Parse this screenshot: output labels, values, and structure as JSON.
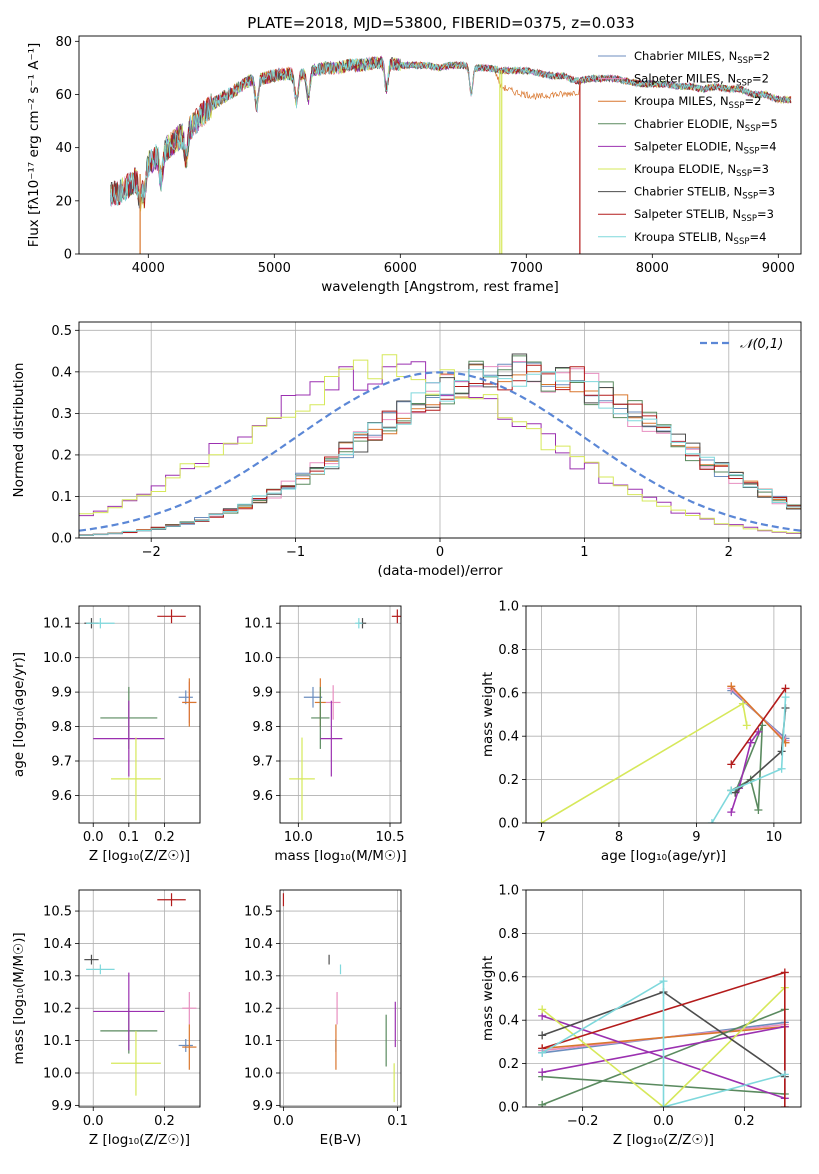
{
  "title": "PLATE=2018, MJD=53800, FIBERID=0375, z=0.033",
  "palette": {
    "Chabrier MILES": "#6c8ebf",
    "Salpeter MILES": "#e88fc0",
    "Kroupa MILES": "#d9772e",
    "Chabrier ELODIE": "#5a8a5f",
    "Salpeter ELODIE": "#9b30b0",
    "Kroupa ELODIE": "#d6e85a",
    "Chabrier STELIB": "#4d4d4d",
    "Salpeter STELIB": "#b31b1b",
    "Kroupa STELIB": "#7fd8dc",
    "normal": "#5b87d6"
  },
  "chart_data": [
    {
      "id": "spectrum",
      "type": "line",
      "xlabel": "wavelength [Angstrom, rest frame]",
      "ylabel": "Flux [fλ10⁻¹⁷ erg cm⁻² s⁻¹ A⁻¹]",
      "xlim": [
        3450,
        9180
      ],
      "ylim": [
        0,
        82
      ],
      "xticks": [
        4000,
        5000,
        6000,
        7000,
        8000,
        9000
      ],
      "yticks": [
        0,
        20,
        40,
        60,
        80
      ],
      "legend_position": "upper-right",
      "legend": [
        {
          "text": "Chabrier MILES, NSSP=2"
        },
        {
          "text": "Salpeter MILES, NSSP=2"
        },
        {
          "text": "Kroupa MILES, NSSP=2"
        },
        {
          "text": "Chabrier ELODIE, NSSP=5"
        },
        {
          "text": "Salpeter ELODIE, NSSP=4"
        },
        {
          "text": "Kroupa ELODIE, NSSP=3"
        },
        {
          "text": "Chabrier STELIB, NSSP=3"
        },
        {
          "text": "Salpeter STELIB, NSSP=3"
        },
        {
          "text": "Kroupa STELIB, NSSP=4"
        }
      ],
      "continuum": [
        [
          3700,
          22
        ],
        [
          3800,
          24
        ],
        [
          3900,
          28
        ],
        [
          4000,
          34
        ],
        [
          4100,
          38
        ],
        [
          4200,
          42
        ],
        [
          4300,
          46
        ],
        [
          4400,
          51
        ],
        [
          4500,
          56
        ],
        [
          4600,
          59
        ],
        [
          4700,
          62
        ],
        [
          4800,
          65
        ],
        [
          4900,
          66
        ],
        [
          5000,
          67
        ],
        [
          5100,
          68
        ],
        [
          5200,
          67
        ],
        [
          5300,
          69
        ],
        [
          5400,
          70
        ],
        [
          5500,
          70
        ],
        [
          5600,
          71
        ],
        [
          5700,
          71
        ],
        [
          5800,
          72
        ],
        [
          5900,
          72
        ],
        [
          6000,
          71
        ],
        [
          6100,
          71
        ],
        [
          6200,
          71
        ],
        [
          6300,
          70
        ],
        [
          6400,
          71
        ],
        [
          6500,
          71
        ],
        [
          6600,
          70
        ],
        [
          6700,
          70
        ],
        [
          6800,
          69
        ],
        [
          6900,
          69
        ],
        [
          7000,
          69
        ],
        [
          7100,
          68
        ],
        [
          7200,
          67
        ],
        [
          7300,
          67
        ],
        [
          7400,
          65
        ],
        [
          7500,
          66
        ],
        [
          7600,
          66
        ],
        [
          7700,
          66
        ],
        [
          7800,
          65
        ],
        [
          7900,
          64
        ],
        [
          8000,
          64
        ],
        [
          8100,
          64
        ],
        [
          8200,
          63
        ],
        [
          8300,
          63
        ],
        [
          8400,
          62
        ],
        [
          8500,
          63
        ],
        [
          8600,
          62
        ],
        [
          8700,
          62
        ],
        [
          8800,
          60
        ],
        [
          8900,
          60
        ],
        [
          9000,
          58
        ],
        [
          9100,
          58
        ]
      ],
      "kroupa_miles_dip": [
        [
          6750,
          69
        ],
        [
          6800,
          63
        ],
        [
          6900,
          61
        ],
        [
          7000,
          60
        ],
        [
          7100,
          59
        ],
        [
          7200,
          60
        ],
        [
          7300,
          60
        ],
        [
          7400,
          61
        ]
      ],
      "drops": [
        3935,
        6790,
        6805,
        7425
      ],
      "absorption": [
        3934,
        3968,
        4102,
        4300,
        4861,
        5175,
        5270,
        5890,
        6563
      ]
    },
    {
      "id": "residuals",
      "type": "step",
      "xlabel": "(data-model)/error",
      "ylabel": "Normed distribution",
      "xlim": [
        -2.5,
        2.5
      ],
      "ylim": [
        0,
        0.52
      ],
      "xticks": [
        -2,
        -1,
        0,
        1,
        2
      ],
      "yticks": [
        0.0,
        0.1,
        0.2,
        0.3,
        0.4,
        0.5
      ],
      "legend": "𝒩(0,1)",
      "legend_position": "upper-right",
      "grid": true
    },
    {
      "id": "age-vs-Z",
      "type": "errorbar",
      "xlabel": "Z [log₁₀(Z/Z☉)]",
      "ylabel": "age  [log₁₀(age/yr)]",
      "xlim": [
        -0.04,
        0.3
      ],
      "ylim": [
        9.52,
        10.15
      ],
      "xticks": [
        0.0,
        0.1,
        0.2
      ],
      "yticks": [
        9.6,
        9.7,
        9.8,
        9.9,
        10.0,
        10.1
      ],
      "points": [
        {
          "s": "Chabrier MILES",
          "x": 0.26,
          "y": 9.885,
          "ex": 0.02,
          "ey": 0.02
        },
        {
          "s": "Salpeter MILES",
          "x": 0.27,
          "y": 9.87,
          "ex": 0.02,
          "ey": 0.06
        },
        {
          "s": "Kroupa MILES",
          "x": 0.27,
          "y": 9.87,
          "ex": 0.02,
          "ey": 0.07
        },
        {
          "s": "Chabrier ELODIE",
          "x": 0.1,
          "y": 9.825,
          "ex": 0.08,
          "ey": 0.09
        },
        {
          "s": "Salpeter ELODIE",
          "x": 0.1,
          "y": 9.765,
          "ex": 0.1,
          "ey": 0.11
        },
        {
          "s": "Kroupa ELODIE",
          "x": 0.12,
          "y": 9.648,
          "ex": 0.07,
          "ey": 0.12
        },
        {
          "s": "Chabrier STELIB",
          "x": -0.005,
          "y": 10.1,
          "ex": 0.02,
          "ey": 0.015
        },
        {
          "s": "Salpeter STELIB",
          "x": 0.22,
          "y": 10.12,
          "ex": 0.04,
          "ey": 0.02
        },
        {
          "s": "Kroupa STELIB",
          "x": 0.02,
          "y": 10.1,
          "ex": 0.04,
          "ey": 0.015
        }
      ]
    },
    {
      "id": "age-vs-mass",
      "type": "errorbar",
      "xlabel": "mass [log₁₀(M/M☉)]",
      "ylabel": "",
      "xlim": [
        9.9,
        10.56
      ],
      "ylim": [
        9.52,
        10.15
      ],
      "xticks": [
        10.0,
        10.5
      ],
      "yticks": [
        9.6,
        9.7,
        9.8,
        9.9,
        10.0,
        10.1
      ],
      "points": [
        {
          "s": "Chabrier MILES",
          "x": 10.08,
          "y": 9.885,
          "ex": 0.05,
          "ey": 0.03
        },
        {
          "s": "Salpeter MILES",
          "x": 10.19,
          "y": 9.87,
          "ex": 0.04,
          "ey": 0.05
        },
        {
          "s": "Kroupa MILES",
          "x": 10.12,
          "y": 9.87,
          "ex": 0.03,
          "ey": 0.07
        },
        {
          "s": "Chabrier ELODIE",
          "x": 10.12,
          "y": 9.825,
          "ex": 0.05,
          "ey": 0.09
        },
        {
          "s": "Salpeter ELODIE",
          "x": 10.18,
          "y": 9.765,
          "ex": 0.06,
          "ey": 0.11
        },
        {
          "s": "Kroupa ELODIE",
          "x": 10.02,
          "y": 9.648,
          "ex": 0.07,
          "ey": 0.12
        },
        {
          "s": "Chabrier STELIB",
          "x": 10.35,
          "y": 10.1,
          "ex": 0.02,
          "ey": 0.015
        },
        {
          "s": "Salpeter STELIB",
          "x": 10.54,
          "y": 10.12,
          "ex": 0.03,
          "ey": 0.02
        },
        {
          "s": "Kroupa STELIB",
          "x": 10.33,
          "y": 10.1,
          "ex": 0.02,
          "ey": 0.015
        }
      ]
    },
    {
      "id": "weight-vs-age",
      "type": "line",
      "xlabel": "age  [log₁₀(age/yr)]",
      "ylabel": "mass weight",
      "xlim": [
        6.8,
        10.35
      ],
      "ylim": [
        0,
        1
      ],
      "xticks": [
        7,
        8,
        9,
        10
      ],
      "yticks": [
        0.0,
        0.2,
        0.4,
        0.6,
        0.8,
        1.0
      ],
      "grid": true,
      "series": [
        {
          "s": "Chabrier MILES",
          "x": [
            9.45,
            10.15
          ],
          "y": [
            0.61,
            0.39
          ]
        },
        {
          "s": "Salpeter MILES",
          "x": [
            9.45,
            10.15
          ],
          "y": [
            0.62,
            0.38
          ]
        },
        {
          "s": "Kroupa MILES",
          "x": [
            9.45,
            10.15
          ],
          "y": [
            0.63,
            0.37
          ]
        },
        {
          "s": "Chabrier ELODIE",
          "x": [
            9.45,
            9.7,
            9.8,
            9.85,
            9.5
          ],
          "y": [
            0.15,
            0.2,
            0.06,
            0.45,
            0.14
          ]
        },
        {
          "s": "Salpeter ELODIE",
          "x": [
            9.45,
            9.55,
            9.7,
            9.8
          ],
          "y": [
            0.05,
            0.16,
            0.37,
            0.42
          ]
        },
        {
          "s": "Kroupa ELODIE",
          "x": [
            7.0,
            9.6,
            9.65
          ],
          "y": [
            0.0,
            0.55,
            0.45
          ]
        },
        {
          "s": "Chabrier STELIB",
          "x": [
            9.5,
            10.1,
            10.15
          ],
          "y": [
            0.14,
            0.33,
            0.53
          ]
        },
        {
          "s": "Salpeter STELIB",
          "x": [
            9.45,
            10.15
          ],
          "y": [
            0.27,
            0.62
          ]
        },
        {
          "s": "Kroupa STELIB",
          "x": [
            9.2,
            9.45,
            10.1,
            10.15
          ],
          "y": [
            0.0,
            0.15,
            0.25,
            0.58
          ]
        }
      ]
    },
    {
      "id": "mass-vs-Z",
      "type": "errorbar",
      "xlabel": "Z [log₁₀(Z/Z☉)]",
      "ylabel": "mass [log₁₀(M/M☉)]",
      "xlim": [
        -0.04,
        0.3
      ],
      "ylim": [
        9.895,
        10.565
      ],
      "xticks": [
        0.0,
        0.2
      ],
      "yticks": [
        9.9,
        10.0,
        10.1,
        10.2,
        10.3,
        10.4,
        10.5
      ],
      "points": [
        {
          "s": "Chabrier MILES",
          "x": 0.26,
          "y": 10.085,
          "ex": 0.02,
          "ey": 0.02
        },
        {
          "s": "Salpeter MILES",
          "x": 0.27,
          "y": 10.2,
          "ex": 0.02,
          "ey": 0.05
        },
        {
          "s": "Kroupa MILES",
          "x": 0.27,
          "y": 10.08,
          "ex": 0.02,
          "ey": 0.07
        },
        {
          "s": "Chabrier ELODIE",
          "x": 0.1,
          "y": 10.13,
          "ex": 0.08,
          "ey": 0.07
        },
        {
          "s": "Salpeter ELODIE",
          "x": 0.1,
          "y": 10.19,
          "ex": 0.1,
          "ey": 0.12
        },
        {
          "s": "Kroupa ELODIE",
          "x": 0.12,
          "y": 10.03,
          "ex": 0.07,
          "ey": 0.1
        },
        {
          "s": "Chabrier STELIB",
          "x": -0.005,
          "y": 10.35,
          "ex": 0.02,
          "ey": 0.015
        },
        {
          "s": "Salpeter STELIB",
          "x": 0.22,
          "y": 10.535,
          "ex": 0.04,
          "ey": 0.02
        },
        {
          "s": "Kroupa STELIB",
          "x": 0.02,
          "y": 10.32,
          "ex": 0.04,
          "ey": 0.015
        }
      ]
    },
    {
      "id": "mass-vs-ebv",
      "type": "errorbar",
      "xlabel": "E(B-V)",
      "ylabel": "",
      "xlim": [
        -0.003,
        0.103
      ],
      "ylim": [
        9.895,
        10.565
      ],
      "xticks": [
        0.0,
        0.1
      ],
      "yticks": [
        9.9,
        10.0,
        10.1,
        10.2,
        10.3,
        10.4,
        10.5
      ],
      "points": [
        {
          "s": "Chabrier MILES",
          "x": 0.046,
          "y": 10.085,
          "ex": 0,
          "ey": 0.02
        },
        {
          "s": "Salpeter MILES",
          "x": 0.047,
          "y": 10.2,
          "ex": 0,
          "ey": 0.05
        },
        {
          "s": "Kroupa MILES",
          "x": 0.046,
          "y": 10.08,
          "ex": 0,
          "ey": 0.07
        },
        {
          "s": "Chabrier ELODIE",
          "x": 0.09,
          "y": 10.1,
          "ex": 0,
          "ey": 0.08
        },
        {
          "s": "Salpeter ELODIE",
          "x": 0.098,
          "y": 10.15,
          "ex": 0,
          "ey": 0.07
        },
        {
          "s": "Kroupa ELODIE",
          "x": 0.097,
          "y": 9.97,
          "ex": 0,
          "ey": 0.06
        },
        {
          "s": "Chabrier STELIB",
          "x": 0.04,
          "y": 10.35,
          "ex": 0,
          "ey": 0.015
        },
        {
          "s": "Salpeter STELIB",
          "x": 0.0,
          "y": 10.535,
          "ex": 0,
          "ey": 0.02
        },
        {
          "s": "Kroupa STELIB",
          "x": 0.05,
          "y": 10.32,
          "ex": 0,
          "ey": 0.015
        }
      ]
    },
    {
      "id": "weight-vs-Z",
      "type": "line",
      "xlabel": "Z [log₁₀(Z/Z☉)]",
      "ylabel": "mass weight",
      "xlim": [
        -0.34,
        0.34
      ],
      "ylim": [
        0,
        1
      ],
      "xticks": [
        -0.2,
        0.0,
        0.2
      ],
      "yticks": [
        0.0,
        0.2,
        0.4,
        0.6,
        0.8,
        1.0
      ],
      "grid": true,
      "series": [
        {
          "s": "Chabrier MILES",
          "x": [
            -0.3,
            0.3
          ],
          "y": [
            0.25,
            0.39
          ]
        },
        {
          "s": "Salpeter MILES",
          "x": [
            -0.3,
            0.3
          ],
          "y": [
            0.26,
            0.38
          ]
        },
        {
          "s": "Kroupa MILES",
          "x": [
            -0.3,
            0.3
          ],
          "y": [
            0.27,
            0.37
          ]
        },
        {
          "s": "Chabrier ELODIE",
          "x": [
            -0.3,
            0.3,
            0.3,
            -0.3
          ],
          "y": [
            0.01,
            0.45,
            0.06,
            0.14
          ]
        },
        {
          "s": "Salpeter ELODIE",
          "x": [
            -0.3,
            0.3,
            0.3,
            -0.3
          ],
          "y": [
            0.16,
            0.37,
            0.04,
            0.42
          ]
        },
        {
          "s": "Kroupa ELODIE",
          "x": [
            -0.3,
            0.0,
            0.3
          ],
          "y": [
            0.45,
            0.0,
            0.55
          ]
        },
        {
          "s": "Chabrier STELIB",
          "x": [
            -0.3,
            0.0,
            0.3
          ],
          "y": [
            0.33,
            0.53,
            0.14
          ]
        },
        {
          "s": "Salpeter STELIB",
          "x": [
            -0.3,
            0.3,
            0.3
          ],
          "y": [
            0.27,
            0.62,
            0.0
          ]
        },
        {
          "s": "Kroupa STELIB",
          "x": [
            -0.3,
            0.0,
            0.0,
            0.3
          ],
          "y": [
            0.25,
            0.58,
            0.0,
            0.15
          ]
        }
      ]
    }
  ]
}
